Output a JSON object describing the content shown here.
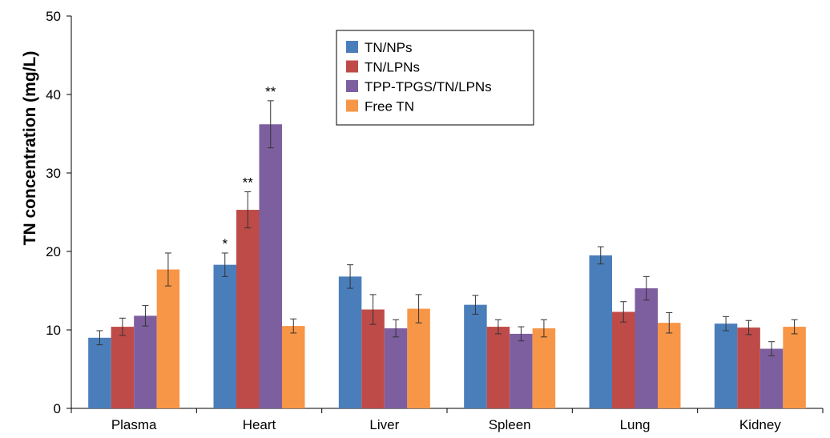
{
  "chart_data": {
    "type": "bar",
    "title": "",
    "xlabel": "",
    "ylabel": "TN concentration (mg/L)",
    "ylim": [
      0,
      50
    ],
    "yticks": [
      0,
      10,
      20,
      30,
      40,
      50
    ],
    "grid": false,
    "legend_position": "top-center",
    "categories": [
      "Plasma",
      "Heart",
      "Liver",
      "Spleen",
      "Lung",
      "Kidney"
    ],
    "series": [
      {
        "name": "TN/NPs",
        "color": "#4a7ebb",
        "values": [
          9.0,
          18.3,
          16.8,
          13.2,
          19.5,
          10.8
        ],
        "errors": [
          0.9,
          1.5,
          1.5,
          1.2,
          1.1,
          0.9
        ],
        "annotations": [
          "",
          "*",
          "",
          "",
          "",
          ""
        ]
      },
      {
        "name": "TN/LPNs",
        "color": "#be4b48",
        "values": [
          10.4,
          25.3,
          12.6,
          10.4,
          12.3,
          10.3
        ],
        "errors": [
          1.1,
          2.3,
          1.9,
          0.9,
          1.3,
          0.9
        ],
        "annotations": [
          "",
          "**",
          "",
          "",
          "",
          ""
        ]
      },
      {
        "name": "TPP-TPGS/TN/LPNs",
        "color": "#7d5fa0",
        "values": [
          11.8,
          36.2,
          10.2,
          9.5,
          15.3,
          7.6
        ],
        "errors": [
          1.3,
          3.0,
          1.1,
          0.9,
          1.5,
          0.9
        ],
        "annotations": [
          "",
          "**",
          "",
          "",
          "",
          ""
        ]
      },
      {
        "name": "Free TN",
        "color": "#f79646",
        "values": [
          17.7,
          10.5,
          12.7,
          10.2,
          10.9,
          10.4
        ],
        "errors": [
          2.1,
          0.9,
          1.8,
          1.1,
          1.3,
          0.9
        ],
        "annotations": [
          "",
          "",
          "",
          "",
          "",
          ""
        ]
      }
    ]
  }
}
